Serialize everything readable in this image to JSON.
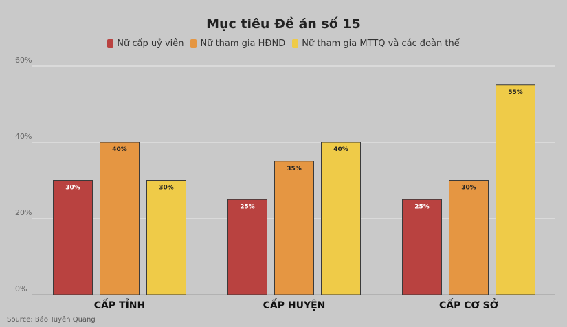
{
  "chart_data": {
    "type": "bar",
    "title": "Mục tiêu Đề án số 15",
    "categories": [
      "CẤP TỈNH",
      "CẤP HUYỆN",
      "CẤP CƠ SỞ"
    ],
    "series": [
      {
        "name": "Nữ cấp uỷ viên",
        "color": "#b94240",
        "values": [
          30,
          25,
          25
        ],
        "labels": [
          "30%",
          "25%",
          "25%"
        ]
      },
      {
        "name": "Nữ tham gia HĐND",
        "color": "#e59642",
        "values": [
          40,
          35,
          30
        ],
        "labels": [
          "40%",
          "35%",
          "30%"
        ]
      },
      {
        "name": "Nữ tham gia MTTQ và các đoàn thể",
        "color": "#efcb48",
        "values": [
          30,
          40,
          55
        ],
        "labels": [
          "30%",
          "40%",
          "55%"
        ]
      }
    ],
    "yticks": [
      {
        "value": 0,
        "label": "0%"
      },
      {
        "value": 20,
        "label": "20%"
      },
      {
        "value": 40,
        "label": "40%"
      },
      {
        "value": 60,
        "label": "60%"
      }
    ],
    "ylim": [
      0,
      60
    ],
    "grid": true,
    "legend_position": "top-center"
  },
  "source": "Source: Báo Tuyên Quang"
}
